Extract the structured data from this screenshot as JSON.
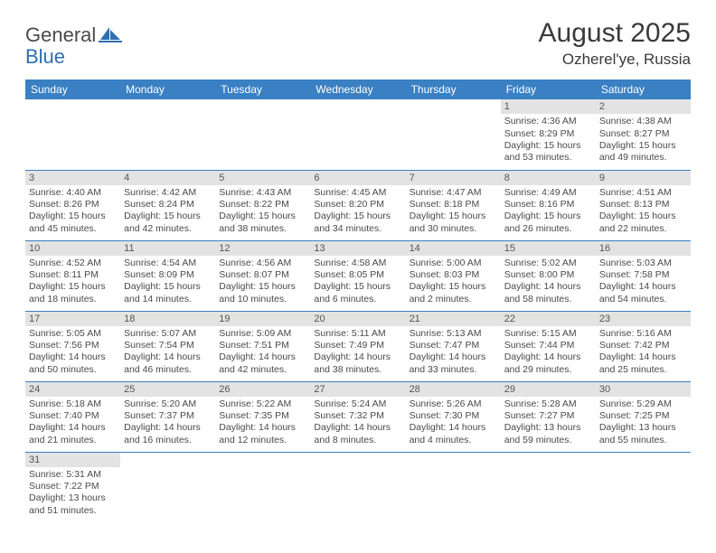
{
  "brand": {
    "general": "General",
    "blue": "Blue"
  },
  "title": {
    "month": "August 2025",
    "location": "Ozherel'ye, Russia"
  },
  "colors": {
    "header_bg": "#3a80c3",
    "header_text": "#ffffff",
    "daynum_bg": "#e3e3e3",
    "row_sep": "#3a80c3",
    "text": "#4a4a4a",
    "brand_blue": "#2f6fb0"
  },
  "weekdays": [
    "Sunday",
    "Monday",
    "Tuesday",
    "Wednesday",
    "Thursday",
    "Friday",
    "Saturday"
  ],
  "weeks": [
    [
      null,
      null,
      null,
      null,
      null,
      {
        "n": "1",
        "sr": "Sunrise: 4:36 AM",
        "ss": "Sunset: 8:29 PM",
        "d1": "Daylight: 15 hours",
        "d2": "and 53 minutes."
      },
      {
        "n": "2",
        "sr": "Sunrise: 4:38 AM",
        "ss": "Sunset: 8:27 PM",
        "d1": "Daylight: 15 hours",
        "d2": "and 49 minutes."
      }
    ],
    [
      {
        "n": "3",
        "sr": "Sunrise: 4:40 AM",
        "ss": "Sunset: 8:26 PM",
        "d1": "Daylight: 15 hours",
        "d2": "and 45 minutes."
      },
      {
        "n": "4",
        "sr": "Sunrise: 4:42 AM",
        "ss": "Sunset: 8:24 PM",
        "d1": "Daylight: 15 hours",
        "d2": "and 42 minutes."
      },
      {
        "n": "5",
        "sr": "Sunrise: 4:43 AM",
        "ss": "Sunset: 8:22 PM",
        "d1": "Daylight: 15 hours",
        "d2": "and 38 minutes."
      },
      {
        "n": "6",
        "sr": "Sunrise: 4:45 AM",
        "ss": "Sunset: 8:20 PM",
        "d1": "Daylight: 15 hours",
        "d2": "and 34 minutes."
      },
      {
        "n": "7",
        "sr": "Sunrise: 4:47 AM",
        "ss": "Sunset: 8:18 PM",
        "d1": "Daylight: 15 hours",
        "d2": "and 30 minutes."
      },
      {
        "n": "8",
        "sr": "Sunrise: 4:49 AM",
        "ss": "Sunset: 8:16 PM",
        "d1": "Daylight: 15 hours",
        "d2": "and 26 minutes."
      },
      {
        "n": "9",
        "sr": "Sunrise: 4:51 AM",
        "ss": "Sunset: 8:13 PM",
        "d1": "Daylight: 15 hours",
        "d2": "and 22 minutes."
      }
    ],
    [
      {
        "n": "10",
        "sr": "Sunrise: 4:52 AM",
        "ss": "Sunset: 8:11 PM",
        "d1": "Daylight: 15 hours",
        "d2": "and 18 minutes."
      },
      {
        "n": "11",
        "sr": "Sunrise: 4:54 AM",
        "ss": "Sunset: 8:09 PM",
        "d1": "Daylight: 15 hours",
        "d2": "and 14 minutes."
      },
      {
        "n": "12",
        "sr": "Sunrise: 4:56 AM",
        "ss": "Sunset: 8:07 PM",
        "d1": "Daylight: 15 hours",
        "d2": "and 10 minutes."
      },
      {
        "n": "13",
        "sr": "Sunrise: 4:58 AM",
        "ss": "Sunset: 8:05 PM",
        "d1": "Daylight: 15 hours",
        "d2": "and 6 minutes."
      },
      {
        "n": "14",
        "sr": "Sunrise: 5:00 AM",
        "ss": "Sunset: 8:03 PM",
        "d1": "Daylight: 15 hours",
        "d2": "and 2 minutes."
      },
      {
        "n": "15",
        "sr": "Sunrise: 5:02 AM",
        "ss": "Sunset: 8:00 PM",
        "d1": "Daylight: 14 hours",
        "d2": "and 58 minutes."
      },
      {
        "n": "16",
        "sr": "Sunrise: 5:03 AM",
        "ss": "Sunset: 7:58 PM",
        "d1": "Daylight: 14 hours",
        "d2": "and 54 minutes."
      }
    ],
    [
      {
        "n": "17",
        "sr": "Sunrise: 5:05 AM",
        "ss": "Sunset: 7:56 PM",
        "d1": "Daylight: 14 hours",
        "d2": "and 50 minutes."
      },
      {
        "n": "18",
        "sr": "Sunrise: 5:07 AM",
        "ss": "Sunset: 7:54 PM",
        "d1": "Daylight: 14 hours",
        "d2": "and 46 minutes."
      },
      {
        "n": "19",
        "sr": "Sunrise: 5:09 AM",
        "ss": "Sunset: 7:51 PM",
        "d1": "Daylight: 14 hours",
        "d2": "and 42 minutes."
      },
      {
        "n": "20",
        "sr": "Sunrise: 5:11 AM",
        "ss": "Sunset: 7:49 PM",
        "d1": "Daylight: 14 hours",
        "d2": "and 38 minutes."
      },
      {
        "n": "21",
        "sr": "Sunrise: 5:13 AM",
        "ss": "Sunset: 7:47 PM",
        "d1": "Daylight: 14 hours",
        "d2": "and 33 minutes."
      },
      {
        "n": "22",
        "sr": "Sunrise: 5:15 AM",
        "ss": "Sunset: 7:44 PM",
        "d1": "Daylight: 14 hours",
        "d2": "and 29 minutes."
      },
      {
        "n": "23",
        "sr": "Sunrise: 5:16 AM",
        "ss": "Sunset: 7:42 PM",
        "d1": "Daylight: 14 hours",
        "d2": "and 25 minutes."
      }
    ],
    [
      {
        "n": "24",
        "sr": "Sunrise: 5:18 AM",
        "ss": "Sunset: 7:40 PM",
        "d1": "Daylight: 14 hours",
        "d2": "and 21 minutes."
      },
      {
        "n": "25",
        "sr": "Sunrise: 5:20 AM",
        "ss": "Sunset: 7:37 PM",
        "d1": "Daylight: 14 hours",
        "d2": "and 16 minutes."
      },
      {
        "n": "26",
        "sr": "Sunrise: 5:22 AM",
        "ss": "Sunset: 7:35 PM",
        "d1": "Daylight: 14 hours",
        "d2": "and 12 minutes."
      },
      {
        "n": "27",
        "sr": "Sunrise: 5:24 AM",
        "ss": "Sunset: 7:32 PM",
        "d1": "Daylight: 14 hours",
        "d2": "and 8 minutes."
      },
      {
        "n": "28",
        "sr": "Sunrise: 5:26 AM",
        "ss": "Sunset: 7:30 PM",
        "d1": "Daylight: 14 hours",
        "d2": "and 4 minutes."
      },
      {
        "n": "29",
        "sr": "Sunrise: 5:28 AM",
        "ss": "Sunset: 7:27 PM",
        "d1": "Daylight: 13 hours",
        "d2": "and 59 minutes."
      },
      {
        "n": "30",
        "sr": "Sunrise: 5:29 AM",
        "ss": "Sunset: 7:25 PM",
        "d1": "Daylight: 13 hours",
        "d2": "and 55 minutes."
      }
    ],
    [
      {
        "n": "31",
        "sr": "Sunrise: 5:31 AM",
        "ss": "Sunset: 7:22 PM",
        "d1": "Daylight: 13 hours",
        "d2": "and 51 minutes."
      },
      null,
      null,
      null,
      null,
      null,
      null
    ]
  ]
}
